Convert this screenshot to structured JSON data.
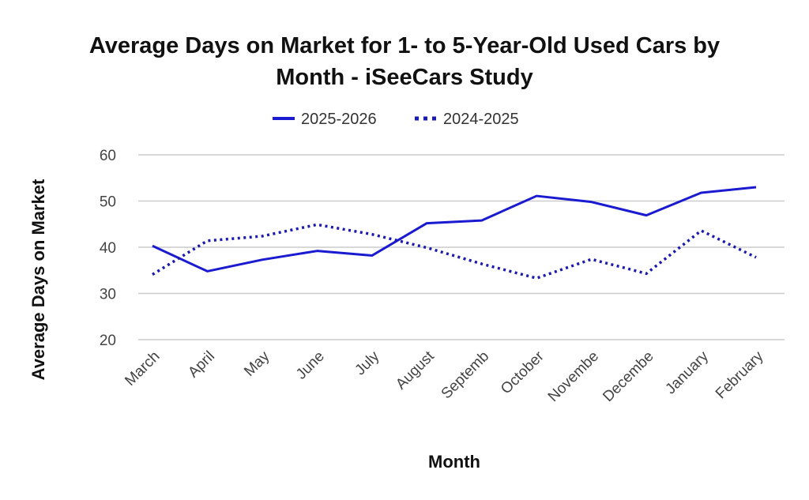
{
  "chart_data": {
    "type": "line",
    "title": "Average Days on Market for 1- to 5-Year-Old Used Cars by Month - iSeeCars Study",
    "title_lines": [
      "Average Days on Market for 1- to 5-Year-Old Used Cars by",
      "Month - iSeeCars Study"
    ],
    "xlabel": "Month",
    "ylabel": "Average Days on Market",
    "categories": [
      "March",
      "April",
      "May",
      "June",
      "July",
      "August",
      "Septemb",
      "October",
      "Novembe",
      "Decembe",
      "January",
      "February"
    ],
    "ylim": [
      20,
      60
    ],
    "yticks": [
      20,
      30,
      40,
      50,
      60
    ],
    "grid": true,
    "legend_position": "top",
    "series": [
      {
        "name": "2025-2026",
        "style": "solid",
        "color": "#1a1ad0",
        "values": [
          40.3,
          34.8,
          37.3,
          39.2,
          38.2,
          45.2,
          45.8,
          51.1,
          49.8,
          46.9,
          51.8,
          53.0
        ]
      },
      {
        "name": "2024-2025",
        "style": "dotted",
        "color": "#1a1ab0",
        "values": [
          34.1,
          41.4,
          42.4,
          44.9,
          42.8,
          39.9,
          36.4,
          33.3,
          37.4,
          34.3,
          43.6,
          37.8
        ]
      }
    ]
  }
}
